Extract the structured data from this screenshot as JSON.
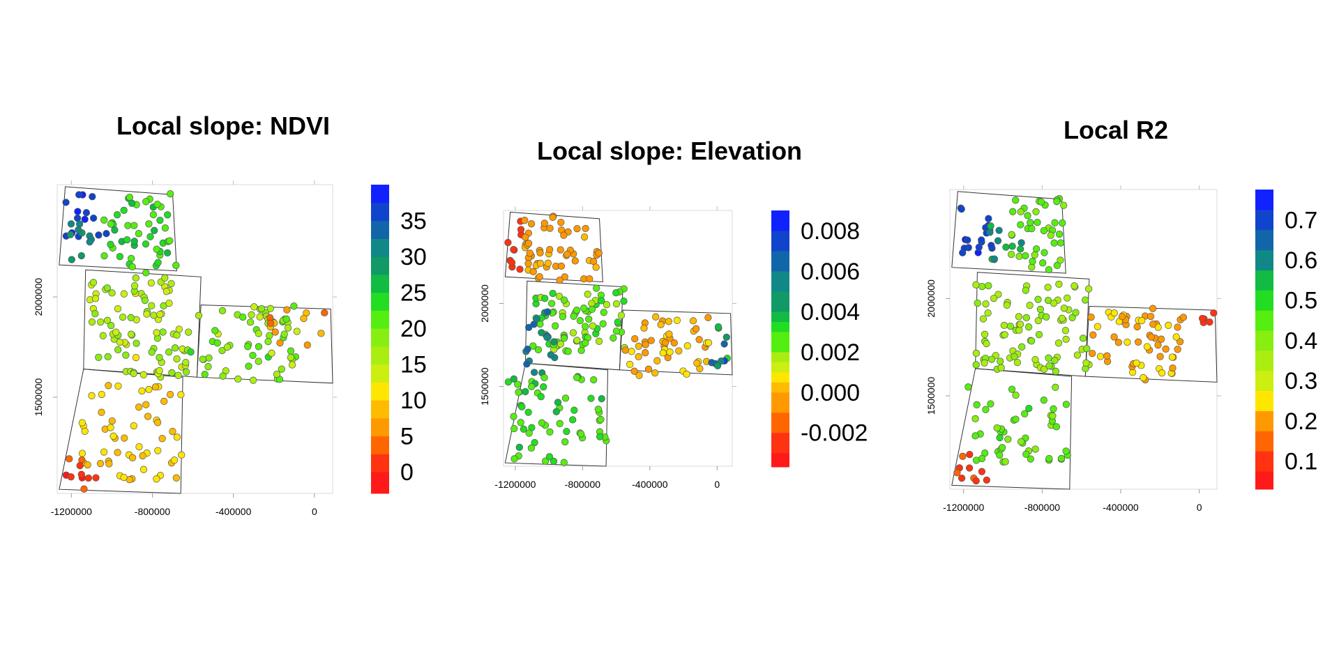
{
  "chart_data": [
    {
      "type": "scatter",
      "title": "Local slope: NDVI",
      "xlim": [
        -1270000,
        90000
      ],
      "ylim": [
        1020000,
        2560000
      ],
      "x_ticks": [
        -1200000,
        -800000,
        -400000,
        0
      ],
      "x_tick_labels": [
        "-1200000",
        "-800000",
        "-400000",
        "0"
      ],
      "y_ticks": [
        1500000,
        2000000
      ],
      "y_tick_labels": [
        "1500000",
        "2000000"
      ],
      "legend": {
        "placement": "right",
        "breaks": [
          -3,
          0,
          2.5,
          5,
          7.5,
          10,
          12.5,
          15,
          17.5,
          20,
          22.5,
          25,
          27.5,
          30,
          32.5,
          35,
          37.5,
          40
        ],
        "tick_values": [
          0,
          5,
          10,
          15,
          20,
          25,
          30,
          35
        ],
        "tick_labels": [
          "0",
          "5",
          "10",
          "15",
          "20",
          "25",
          "30",
          "35"
        ]
      },
      "clusters": [
        {
          "region": "north-west",
          "x": [
            -1230000,
            -1020000
          ],
          "y": [
            2300000,
            2520000
          ],
          "value_range": [
            35,
            38
          ],
          "count": 14
        },
        {
          "region": "north-west",
          "x": [
            -1230000,
            -1050000
          ],
          "y": [
            2160000,
            2380000
          ],
          "value_range": [
            28,
            32
          ],
          "count": 10
        },
        {
          "region": "north",
          "x": [
            -1040000,
            -680000
          ],
          "y": [
            2120000,
            2520000
          ],
          "value_range": [
            20,
            26
          ],
          "count": 50
        },
        {
          "region": "centre",
          "x": [
            -1110000,
            -620000
          ],
          "y": [
            1600000,
            2100000
          ],
          "value_range": [
            12,
            20
          ],
          "count": 90
        },
        {
          "region": "east",
          "x": [
            -620000,
            -80000
          ],
          "y": [
            1580000,
            1960000
          ],
          "value_range": [
            14,
            23
          ],
          "count": 65
        },
        {
          "region": "east",
          "x": [
            -260000,
            80000
          ],
          "y": [
            1760000,
            1940000
          ],
          "value_range": [
            4,
            10
          ],
          "count": 12
        },
        {
          "region": "south",
          "x": [
            -1150000,
            -650000
          ],
          "y": [
            1080000,
            1560000
          ],
          "value_range": [
            8,
            12
          ],
          "count": 55
        },
        {
          "region": "south-west",
          "x": [
            -1240000,
            -1060000
          ],
          "y": [
            1040000,
            1200000
          ],
          "value_range": [
            -1,
            3
          ],
          "count": 10
        }
      ]
    },
    {
      "type": "scatter",
      "title": "Local slope: Elevation",
      "xlim": [
        -1270000,
        90000
      ],
      "ylim": [
        1020000,
        2560000
      ],
      "x_ticks": [
        -1200000,
        -800000,
        -400000,
        0
      ],
      "x_tick_labels": [
        "-1200000",
        "-800000",
        "-400000",
        "0"
      ],
      "y_ticks": [
        1500000,
        2000000
      ],
      "y_tick_labels": [
        "1500000",
        "2000000"
      ],
      "legend": {
        "placement": "right",
        "breaks": [
          -0.0037,
          -0.003,
          -0.002,
          -0.001,
          0,
          0.0005,
          0.001,
          0.0015,
          0.002,
          0.003,
          0.0035,
          0.004,
          0.005,
          0.006,
          0.007,
          0.008,
          0.009
        ],
        "tick_values": [
          -0.002,
          0,
          0.002,
          0.004,
          0.006,
          0.008
        ],
        "tick_labels": [
          "-0.002",
          "0.000",
          "0.002",
          "0.004",
          "0.006",
          "0.008"
        ]
      },
      "clusters": [
        {
          "region": "north-west",
          "x": [
            -1250000,
            -1150000
          ],
          "y": [
            2200000,
            2500000
          ],
          "value_range": [
            -0.003,
            -0.0025
          ],
          "count": 10
        },
        {
          "region": "north",
          "x": [
            -1150000,
            -700000
          ],
          "y": [
            2130000,
            2530000
          ],
          "value_range": [
            -0.001,
            0.0003
          ],
          "count": 55
        },
        {
          "region": "centre",
          "x": [
            -1100000,
            -550000
          ],
          "y": [
            1700000,
            2100000
          ],
          "value_range": [
            0.0015,
            0.0035
          ],
          "count": 80
        },
        {
          "region": "west",
          "x": [
            -1150000,
            -950000
          ],
          "y": [
            1580000,
            1950000
          ],
          "value_range": [
            0.0045,
            0.0065
          ],
          "count": 18
        },
        {
          "region": "east",
          "x": [
            -550000,
            -50000
          ],
          "y": [
            1560000,
            1920000
          ],
          "value_range": [
            -0.0005,
            0.0008
          ],
          "count": 50
        },
        {
          "region": "far-east",
          "x": [
            -40000,
            80000
          ],
          "y": [
            1580000,
            1900000
          ],
          "value_range": [
            0.0028,
            0.0086
          ],
          "count": 10
        },
        {
          "region": "south",
          "x": [
            -1250000,
            -650000
          ],
          "y": [
            1040000,
            1560000
          ],
          "value_range": [
            0.002,
            0.0038
          ],
          "count": 60
        }
      ]
    },
    {
      "type": "scatter",
      "title": "Local R2",
      "xlim": [
        -1270000,
        90000
      ],
      "ylim": [
        1020000,
        2560000
      ],
      "x_ticks": [
        -1200000,
        -800000,
        -400000,
        0
      ],
      "x_tick_labels": [
        "-1200000",
        "-800000",
        "-400000",
        "0"
      ],
      "y_ticks": [
        1500000,
        2000000
      ],
      "y_tick_labels": [
        "1500000",
        "2000000"
      ],
      "legend": {
        "placement": "right",
        "breaks": [
          0.03,
          0.075,
          0.125,
          0.175,
          0.225,
          0.275,
          0.325,
          0.375,
          0.425,
          0.475,
          0.525,
          0.575,
          0.625,
          0.675,
          0.725,
          0.775
        ],
        "tick_values": [
          0.1,
          0.2,
          0.3,
          0.4,
          0.5,
          0.6,
          0.7
        ],
        "tick_labels": [
          "0.1",
          "0.2",
          "0.3",
          "0.4",
          "0.5",
          "0.6",
          "0.7"
        ]
      },
      "clusters": [
        {
          "region": "north-west",
          "x": [
            -1230000,
            -1050000
          ],
          "y": [
            2230000,
            2520000
          ],
          "value_range": [
            0.68,
            0.76
          ],
          "count": 18
        },
        {
          "region": "north-west",
          "x": [
            -1080000,
            -900000
          ],
          "y": [
            2150000,
            2380000
          ],
          "value_range": [
            0.55,
            0.62
          ],
          "count": 12
        },
        {
          "region": "north",
          "x": [
            -960000,
            -680000
          ],
          "y": [
            2120000,
            2520000
          ],
          "value_range": [
            0.4,
            0.48
          ],
          "count": 40
        },
        {
          "region": "centre",
          "x": [
            -1140000,
            -560000
          ],
          "y": [
            1620000,
            2100000
          ],
          "value_range": [
            0.33,
            0.4
          ],
          "count": 90
        },
        {
          "region": "east",
          "x": [
            -560000,
            -80000
          ],
          "y": [
            1580000,
            1950000
          ],
          "value_range": [
            0.18,
            0.26
          ],
          "count": 60
        },
        {
          "region": "far-east",
          "x": [
            0,
            80000
          ],
          "y": [
            1870000,
            1940000
          ],
          "value_range": [
            0.08,
            0.12
          ],
          "count": 5
        },
        {
          "region": "south",
          "x": [
            -1180000,
            -650000
          ],
          "y": [
            1160000,
            1570000
          ],
          "value_range": [
            0.4,
            0.48
          ],
          "count": 50
        },
        {
          "region": "south-west",
          "x": [
            -1240000,
            -1080000
          ],
          "y": [
            1040000,
            1200000
          ],
          "value_range": [
            0.08,
            0.15
          ],
          "count": 10
        }
      ]
    }
  ]
}
